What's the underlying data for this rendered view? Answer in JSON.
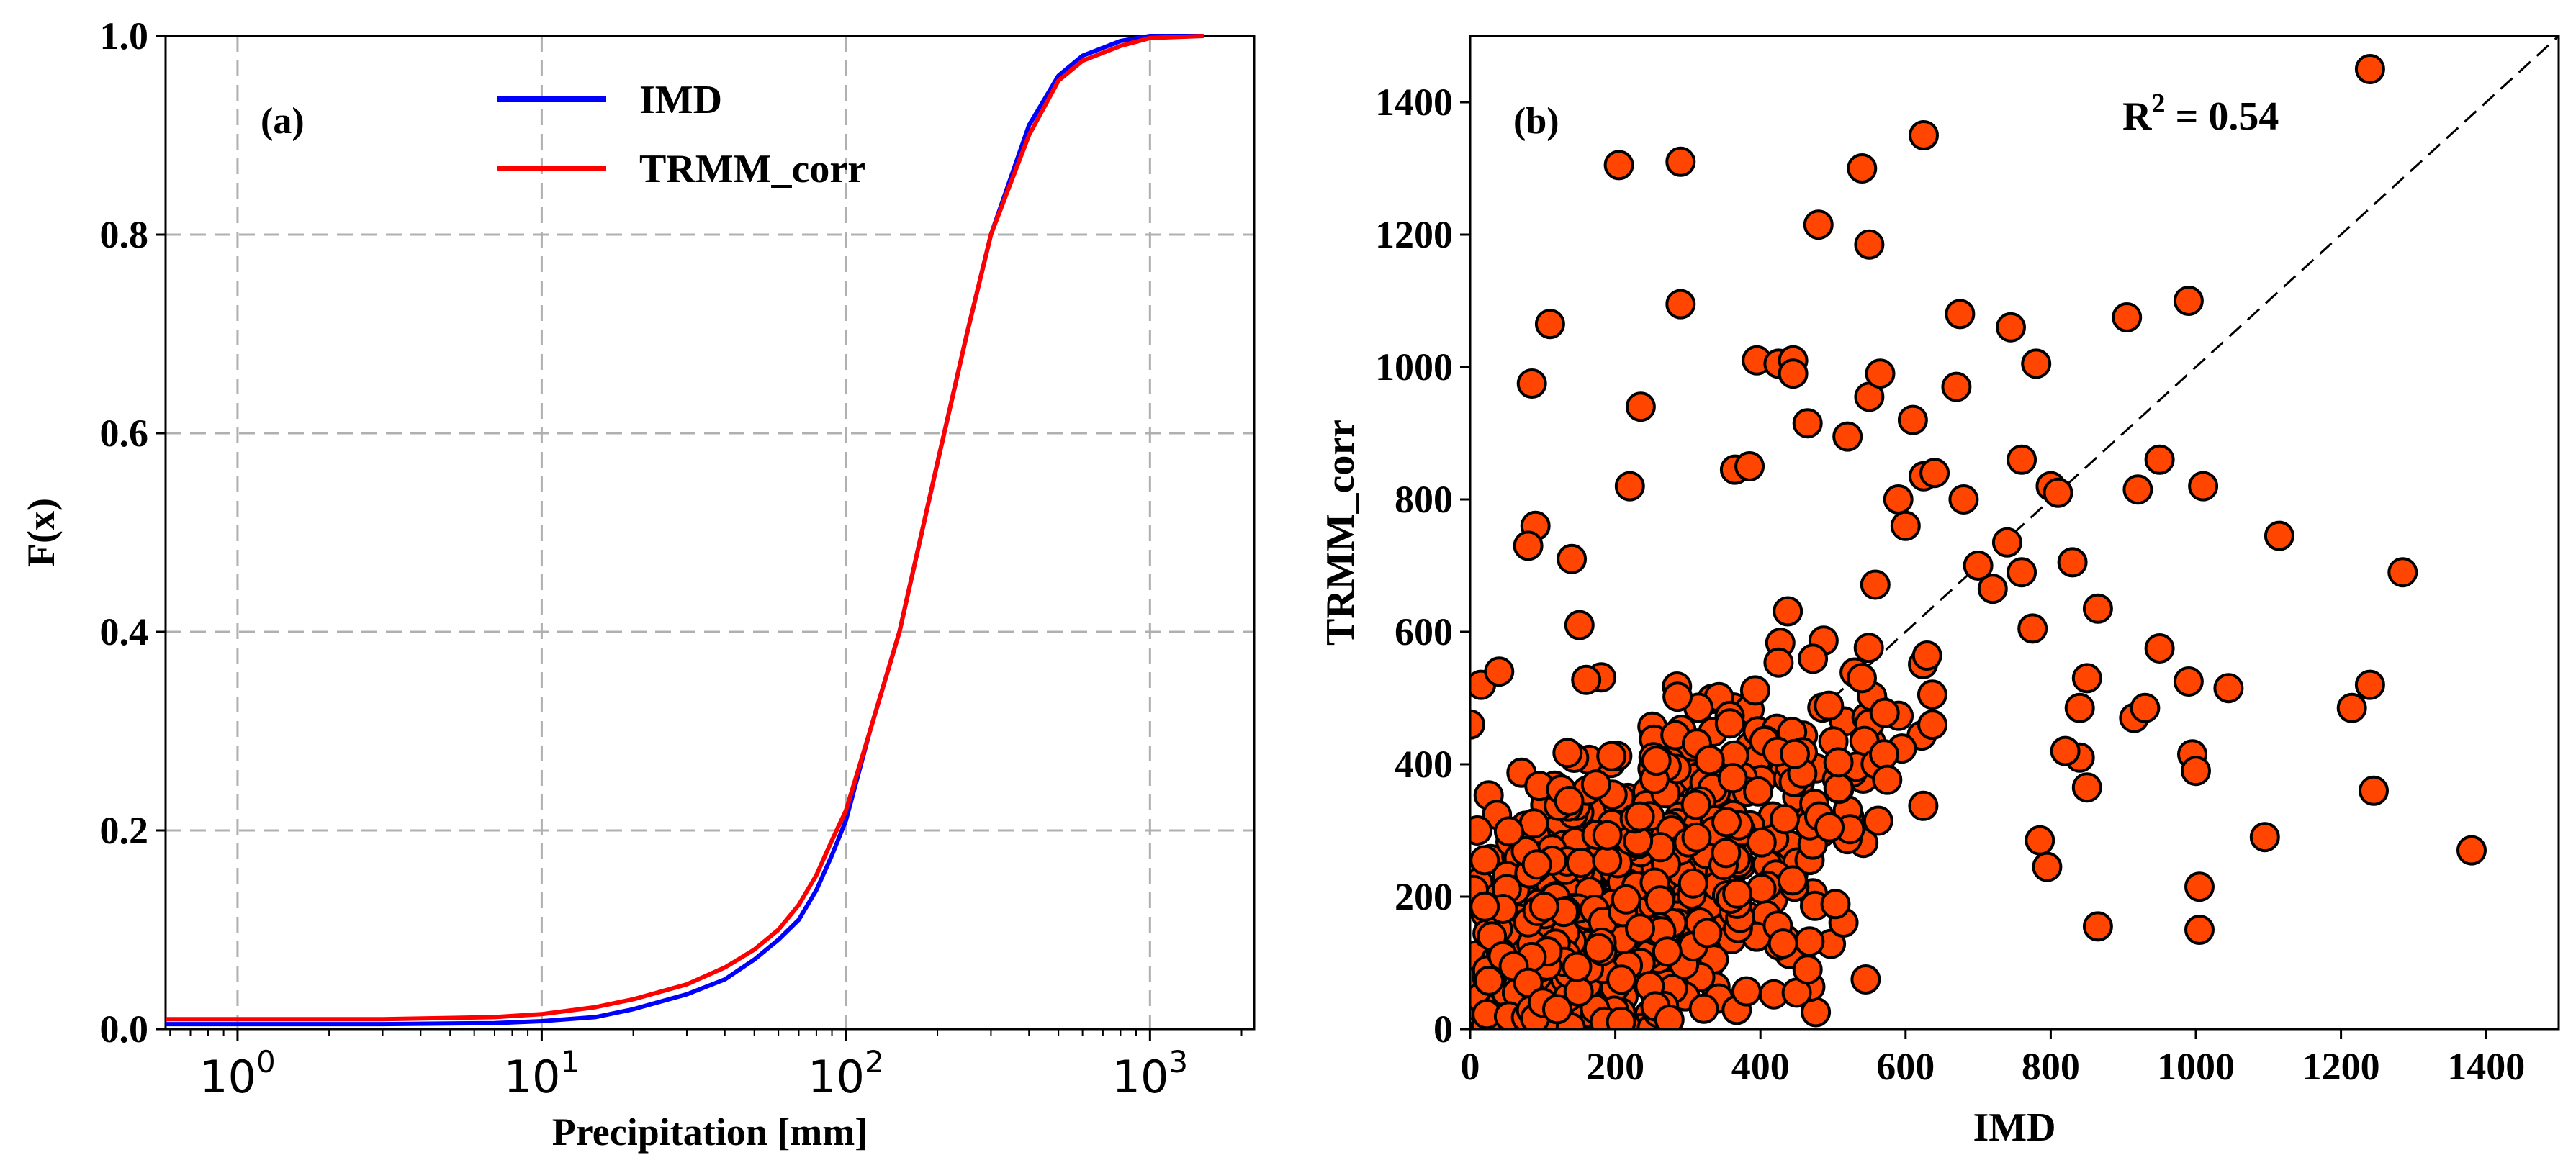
{
  "colors": {
    "imd_line": "#0000ff",
    "trmm_line": "#ff0000",
    "scatter_fill": "#ff4500",
    "scatter_edge": "#000000",
    "grid": "#b0b0b0"
  },
  "chart_data": [
    {
      "type": "line",
      "panel_label": "(a)",
      "xlabel": "Precipitation [mm]",
      "ylabel": "F(x)",
      "xscale": "log",
      "xlim": [
        0.58,
        2200
      ],
      "ylim": [
        0,
        1
      ],
      "x_ticks": [
        {
          "base": "10",
          "exp": "0"
        },
        {
          "base": "10",
          "exp": "1"
        },
        {
          "base": "10",
          "exp": "2"
        },
        {
          "base": "10",
          "exp": "3"
        }
      ],
      "y_ticks": [
        "0.0",
        "0.2",
        "0.4",
        "0.6",
        "0.8",
        "1.0"
      ],
      "grid": true,
      "legend_position": "top-center",
      "series": [
        {
          "name": "IMD",
          "color": "#0000ff",
          "x": [
            0.58,
            1,
            3,
            7,
            10,
            15,
            20,
            30,
            40,
            50,
            60,
            70,
            80,
            90,
            100,
            120,
            150,
            200,
            250,
            300,
            400,
            500,
            600,
            800,
            1000,
            1500
          ],
          "y": [
            0.005,
            0.005,
            0.005,
            0.006,
            0.008,
            0.012,
            0.02,
            0.035,
            0.05,
            0.07,
            0.09,
            0.11,
            0.14,
            0.175,
            0.21,
            0.3,
            0.4,
            0.57,
            0.7,
            0.8,
            0.91,
            0.96,
            0.98,
            0.995,
            1.0,
            1.0
          ]
        },
        {
          "name": "TRMM_corr",
          "color": "#ff0000",
          "x": [
            0.58,
            1,
            3,
            7,
            10,
            15,
            20,
            30,
            40,
            50,
            60,
            70,
            80,
            90,
            100,
            120,
            150,
            200,
            250,
            300,
            400,
            500,
            600,
            800,
            1000,
            1500
          ],
          "y": [
            0.01,
            0.01,
            0.01,
            0.012,
            0.015,
            0.022,
            0.03,
            0.045,
            0.062,
            0.08,
            0.1,
            0.125,
            0.155,
            0.19,
            0.22,
            0.3,
            0.4,
            0.57,
            0.7,
            0.8,
            0.9,
            0.955,
            0.975,
            0.99,
            0.998,
            1.0
          ]
        }
      ]
    },
    {
      "type": "scatter",
      "panel_label": "(b)",
      "xlabel": "IMD",
      "ylabel": "TRMM_corr",
      "xlim": [
        0,
        1500
      ],
      "ylim": [
        0,
        1500
      ],
      "x_ticks": [
        "0",
        "200",
        "400",
        "600",
        "800",
        "1000",
        "1200",
        "1400"
      ],
      "y_ticks": [
        "0",
        "200",
        "400",
        "600",
        "800",
        "1000",
        "1200",
        "1400"
      ],
      "grid": false,
      "annotation": {
        "text": "R",
        "sup": "2",
        "rest": " = 0.54"
      },
      "reference_line": "1:1 dashed",
      "outliers": [
        [
          1240,
          1450
        ],
        [
          625,
          1350
        ],
        [
          290,
          1310
        ],
        [
          205,
          1305
        ],
        [
          540,
          1300
        ],
        [
          550,
          1185
        ],
        [
          480,
          1215
        ],
        [
          290,
          1095
        ],
        [
          110,
          1065
        ],
        [
          675,
          1080
        ],
        [
          905,
          1075
        ],
        [
          990,
          1100
        ],
        [
          745,
          1060
        ],
        [
          780,
          1005
        ],
        [
          395,
          1010
        ],
        [
          425,
          1005
        ],
        [
          445,
          1010
        ],
        [
          445,
          990
        ],
        [
          550,
          955
        ],
        [
          565,
          990
        ],
        [
          610,
          920
        ],
        [
          520,
          895
        ],
        [
          670,
          970
        ],
        [
          85,
          975
        ],
        [
          235,
          940
        ],
        [
          465,
          915
        ],
        [
          950,
          860
        ],
        [
          1010,
          820
        ],
        [
          920,
          815
        ],
        [
          1115,
          745
        ],
        [
          1285,
          690
        ],
        [
          830,
          705
        ],
        [
          865,
          635
        ],
        [
          220,
          820
        ],
        [
          90,
          760
        ],
        [
          80,
          730
        ],
        [
          140,
          710
        ],
        [
          760,
          860
        ],
        [
          800,
          820
        ],
        [
          810,
          810
        ],
        [
          950,
          575
        ],
        [
          990,
          525
        ],
        [
          1045,
          515
        ],
        [
          1240,
          520
        ],
        [
          1215,
          485
        ],
        [
          915,
          470
        ],
        [
          930,
          485
        ],
        [
          995,
          415
        ],
        [
          1000,
          390
        ],
        [
          1245,
          360
        ],
        [
          1380,
          270
        ],
        [
          1095,
          290
        ],
        [
          1005,
          215
        ],
        [
          1005,
          150
        ],
        [
          865,
          155
        ],
        [
          785,
          285
        ],
        [
          795,
          245
        ],
        [
          840,
          410
        ],
        [
          850,
          365
        ],
        [
          820,
          420
        ],
        [
          545,
          75
        ],
        [
          450,
          55
        ],
        [
          465,
          90
        ],
        [
          840,
          485
        ],
        [
          850,
          530
        ],
        [
          775,
          605
        ],
        [
          700,
          700
        ],
        [
          740,
          735
        ],
        [
          720,
          665
        ],
        [
          760,
          690
        ],
        [
          680,
          800
        ],
        [
          590,
          800
        ],
        [
          600,
          760
        ],
        [
          625,
          835
        ],
        [
          640,
          840
        ],
        [
          365,
          845
        ],
        [
          385,
          850
        ],
        [
          0,
          460
        ],
        [
          15,
          520
        ],
        [
          40,
          540
        ],
        [
          10,
          300
        ],
        [
          20,
          255
        ],
        [
          5,
          210
        ],
        [
          20,
          185
        ],
        [
          30,
          140
        ],
        [
          45,
          110
        ],
        [
          60,
          95
        ],
        [
          80,
          70
        ],
        [
          100,
          40
        ],
        [
          120,
          30
        ]
      ],
      "cluster": {
        "count": 900,
        "x_range": [
          0,
          650
        ],
        "y_range": [
          0,
          700
        ]
      }
    }
  ]
}
